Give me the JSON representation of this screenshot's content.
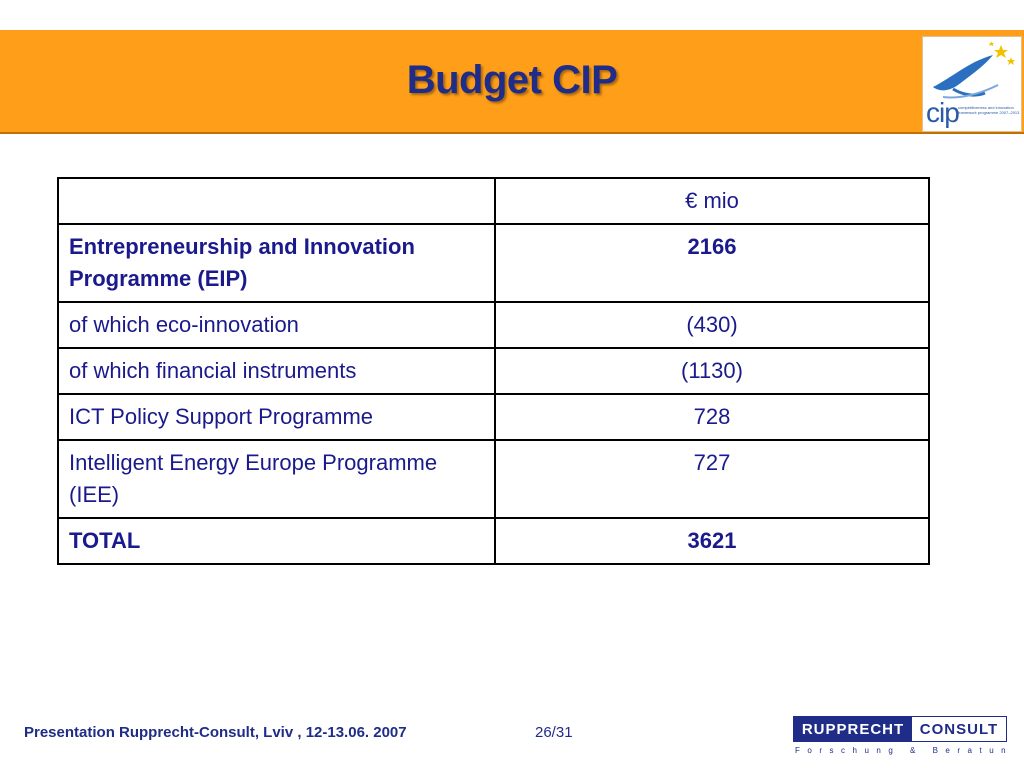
{
  "slide": {
    "title": "Budget CIP"
  },
  "logo": {
    "word": "cip",
    "tagline": "competitiveness and innovation framework programme 2007–2013"
  },
  "table": {
    "header_value": "€ mio",
    "rows": [
      {
        "label": "Entrepreneurship and Innovation Programme (EIP)",
        "value": "2166",
        "bold": true
      },
      {
        "label": "of which eco-innovation",
        "value": "(430)",
        "bold": false
      },
      {
        "label": "of which financial instruments",
        "value": "(1130)",
        "bold": false
      },
      {
        "label": "ICT Policy Support Programme",
        "value": "728",
        "bold": false
      },
      {
        "label": "Intelligent Energy Europe Programme (IEE)",
        "value": "727",
        "bold": false
      },
      {
        "label": "TOTAL",
        "value": "3621",
        "bold": true
      }
    ]
  },
  "footer": {
    "text": "Presentation Rupprecht-Consult, Lviv , 12-13.06. 2007",
    "page": "26/31",
    "brand_left": "RUPPRECHT",
    "brand_right": "CONSULT",
    "brand_sub": "Forschung & Beratung GmbH"
  },
  "colors": {
    "header_bg": "#ff9e18",
    "title": "#1f2c88",
    "text": "#1a1a8c"
  }
}
